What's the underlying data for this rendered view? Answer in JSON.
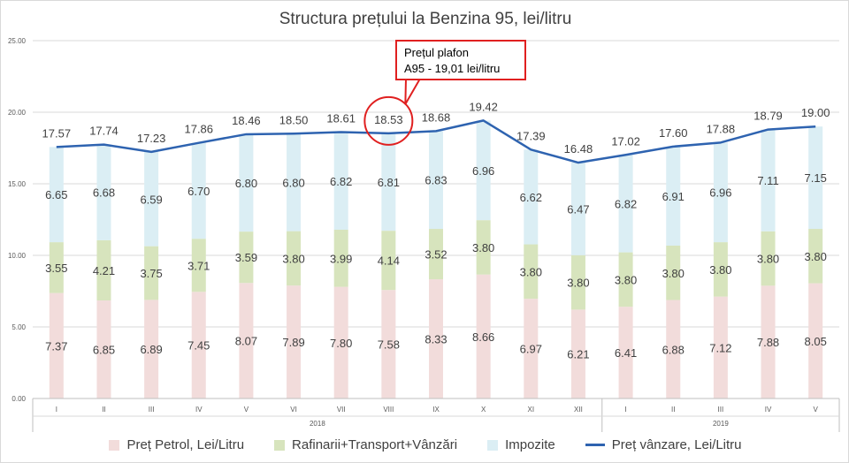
{
  "chart_data": {
    "type": "bar",
    "stacked": true,
    "title": "Structura prețului la Benzina 95, lei/litru",
    "categories": [
      "I",
      "II",
      "III",
      "IV",
      "V",
      "VI",
      "VII",
      "VIII",
      "IX",
      "X",
      "XI",
      "XII",
      "I",
      "II",
      "III",
      "IV",
      "V"
    ],
    "year_groups": [
      {
        "label": "2018",
        "count": 12
      },
      {
        "label": "2019",
        "count": 5
      }
    ],
    "ylim": [
      0,
      25
    ],
    "yticks": [
      "0.00",
      "5.00",
      "10.00",
      "15.00",
      "20.00",
      "25.00"
    ],
    "grid": true,
    "legend_position": "bottom",
    "series": [
      {
        "name": "Preț Petrol, Lei/Litru",
        "kind": "bar",
        "color": "#f2dcdb",
        "values": [
          7.37,
          6.85,
          6.89,
          7.45,
          8.07,
          7.89,
          7.8,
          7.58,
          8.33,
          8.66,
          6.97,
          6.21,
          6.41,
          6.88,
          7.12,
          7.88,
          8.05
        ]
      },
      {
        "name": "Rafinarii+Transport+Vânzări",
        "kind": "bar",
        "color": "#d7e4bd",
        "values": [
          3.55,
          4.21,
          3.75,
          3.71,
          3.59,
          3.8,
          3.99,
          4.14,
          3.52,
          3.8,
          3.8,
          3.8,
          3.8,
          3.8,
          3.8,
          3.8,
          3.8
        ]
      },
      {
        "name": "Impozite",
        "kind": "bar",
        "color": "#dbeef4",
        "values": [
          6.65,
          6.68,
          6.59,
          6.7,
          6.8,
          6.8,
          6.82,
          6.81,
          6.83,
          6.96,
          6.62,
          6.47,
          6.82,
          6.91,
          6.96,
          7.11,
          7.15
        ]
      },
      {
        "name": "Preț vânzare, Lei/Litru",
        "kind": "line",
        "color": "#2e63b0",
        "values": [
          17.57,
          17.74,
          17.23,
          17.86,
          18.46,
          18.5,
          18.61,
          18.53,
          18.68,
          19.42,
          17.39,
          16.48,
          17.02,
          17.6,
          17.88,
          18.79,
          19.0
        ]
      }
    ],
    "annotations": [
      {
        "text_line1": "Prețul plafon",
        "text_line2": "A95 - 19,01 lei/litru",
        "highlight_category_index": 7,
        "color": "#e02020"
      }
    ]
  }
}
